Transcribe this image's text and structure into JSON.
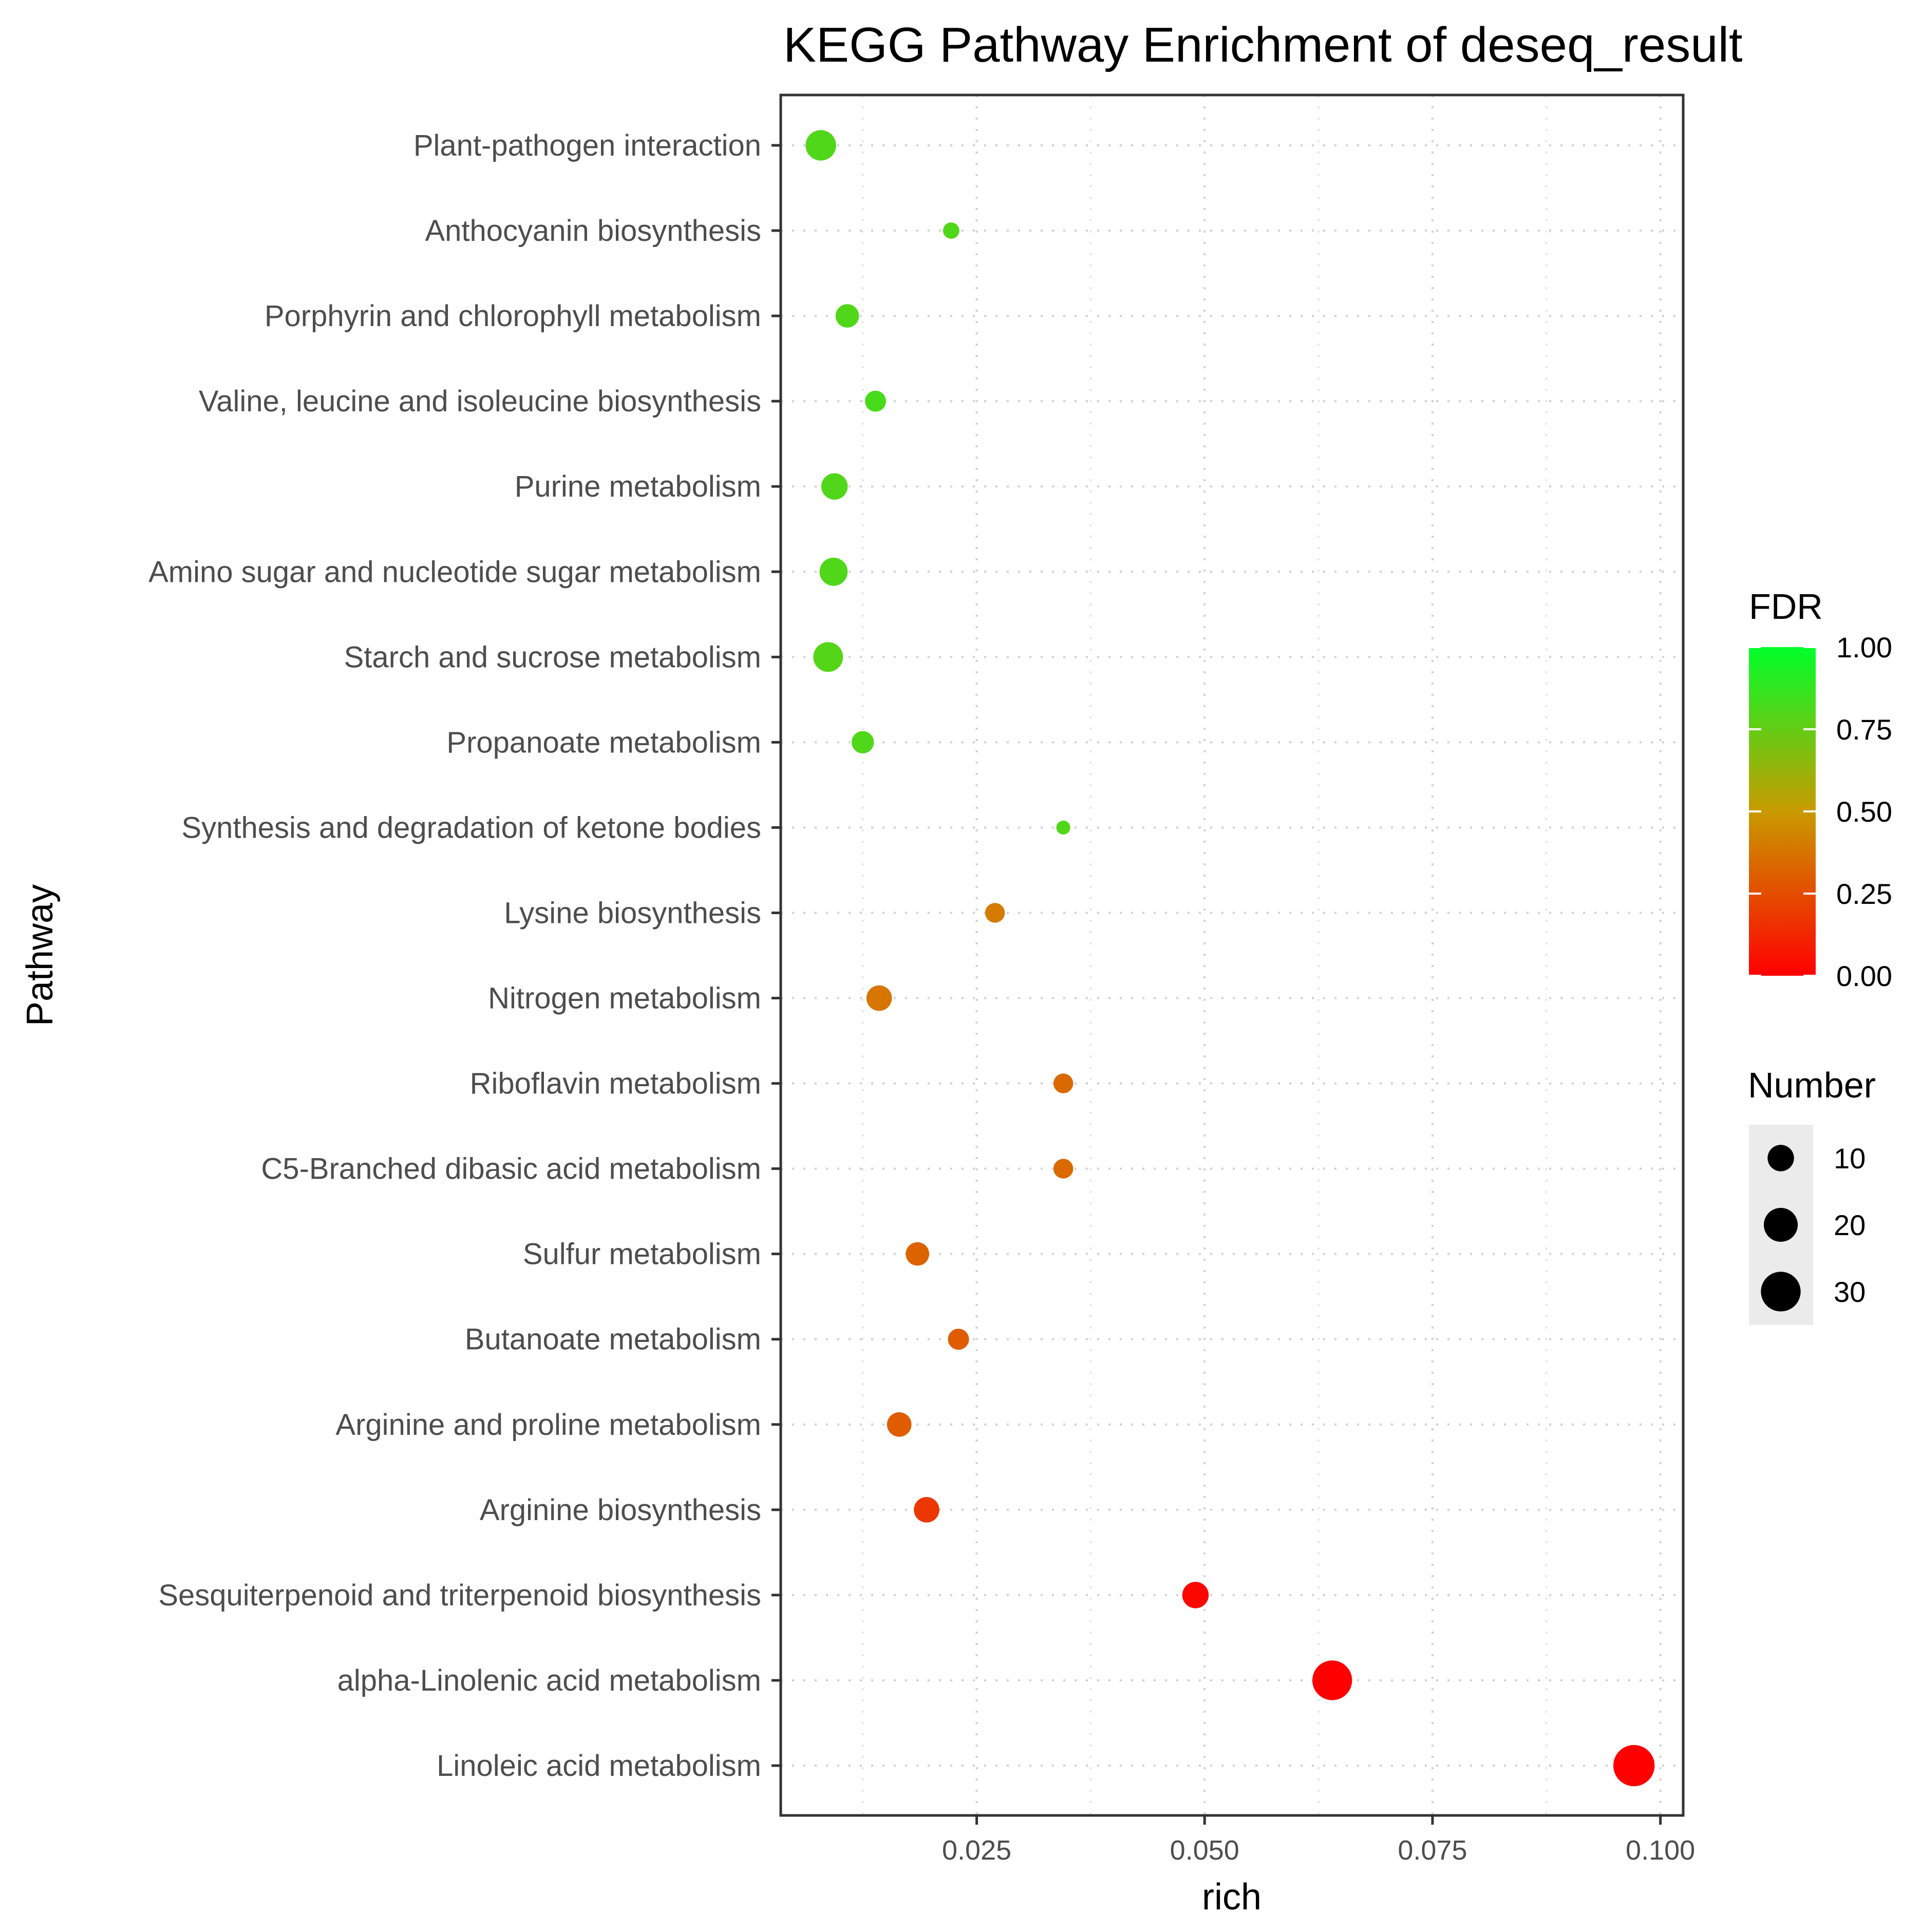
{
  "chart_data": {
    "type": "scatter",
    "title": "KEGG Pathway Enrichment of deseq_result",
    "xlabel": "rich",
    "ylabel": "Pathway",
    "xlim": [
      0.0035,
      0.1025
    ],
    "xticks": [
      0.025,
      0.05,
      0.075,
      0.1
    ],
    "xtick_labels": [
      "0.025",
      "0.050",
      "0.075",
      "0.100"
    ],
    "grid": true,
    "categories": [
      "Plant-pathogen interaction",
      "Anthocyanin biosynthesis",
      "Porphyrin and chlorophyll metabolism",
      "Valine, leucine and isoleucine biosynthesis",
      "Purine metabolism",
      "Amino sugar and nucleotide sugar metabolism",
      "Starch and sucrose metabolism",
      "Propanoate metabolism",
      "Synthesis and degradation of ketone bodies",
      "Lysine biosynthesis",
      "Nitrogen metabolism",
      "Riboflavin metabolism",
      "C5-Branched dibasic acid metabolism",
      "Sulfur metabolism",
      "Butanoate metabolism",
      "Arginine and proline metabolism",
      "Arginine biosynthesis",
      "Sesquiterpenoid and triterpenoid biosynthesis",
      "alpha-Linolenic acid metabolism",
      "Linoleic acid metabolism"
    ],
    "points": [
      {
        "pathway": "Plant-pathogen interaction",
        "rich": 0.0079,
        "number": 15,
        "fdr": 0.8
      },
      {
        "pathway": "Anthocyanin biosynthesis",
        "rich": 0.0222,
        "number": 2,
        "fdr": 0.8
      },
      {
        "pathway": "Porphyrin and chlorophyll metabolism",
        "rich": 0.0108,
        "number": 7,
        "fdr": 0.8
      },
      {
        "pathway": "Valine, leucine and isoleucine biosynthesis",
        "rich": 0.0139,
        "number": 5,
        "fdr": 0.82
      },
      {
        "pathway": "Purine metabolism",
        "rich": 0.0094,
        "number": 10,
        "fdr": 0.8
      },
      {
        "pathway": "Amino sugar and nucleotide sugar metabolism",
        "rich": 0.0093,
        "number": 12,
        "fdr": 0.8
      },
      {
        "pathway": "Starch and sucrose metabolism",
        "rich": 0.0087,
        "number": 14,
        "fdr": 0.79
      },
      {
        "pathway": "Propanoate metabolism",
        "rich": 0.0125,
        "number": 6,
        "fdr": 0.8
      },
      {
        "pathway": "Synthesis and degradation of ketone bodies",
        "rich": 0.0345,
        "number": 1,
        "fdr": 0.8
      },
      {
        "pathway": "Lysine biosynthesis",
        "rich": 0.027,
        "number": 4,
        "fdr": 0.4
      },
      {
        "pathway": "Nitrogen metabolism",
        "rich": 0.0143,
        "number": 9,
        "fdr": 0.38
      },
      {
        "pathway": "Riboflavin metabolism",
        "rich": 0.0345,
        "number": 4,
        "fdr": 0.34
      },
      {
        "pathway": "C5-Branched dibasic acid metabolism",
        "rich": 0.0345,
        "number": 4,
        "fdr": 0.34
      },
      {
        "pathway": "Sulfur metabolism",
        "rich": 0.0185,
        "number": 7,
        "fdr": 0.32
      },
      {
        "pathway": "Butanoate metabolism",
        "rich": 0.023,
        "number": 5,
        "fdr": 0.3
      },
      {
        "pathway": "Arginine and proline metabolism",
        "rich": 0.0165,
        "number": 8,
        "fdr": 0.3
      },
      {
        "pathway": "Arginine biosynthesis",
        "rich": 0.0195,
        "number": 9,
        "fdr": 0.18
      },
      {
        "pathway": "Sesquiterpenoid and triterpenoid biosynthesis",
        "rich": 0.049,
        "number": 10,
        "fdr": 0.02
      },
      {
        "pathway": "alpha-Linolenic acid metabolism",
        "rich": 0.064,
        "number": 30,
        "fdr": 0.0
      },
      {
        "pathway": "Linoleic acid metabolism",
        "rich": 0.0971,
        "number": 33,
        "fdr": 0.0
      }
    ],
    "legend_color": {
      "title": "FDR",
      "ticks": [
        1.0,
        0.75,
        0.5,
        0.25,
        0.0
      ],
      "tick_labels": [
        "1.00",
        "0.75",
        "0.50",
        "0.25",
        "0.00"
      ],
      "low_color": "#ff0000",
      "high_color": "#00ff00",
      "placement": "right"
    },
    "legend_size": {
      "title": "Number",
      "values": [
        10,
        20,
        30
      ],
      "labels": [
        "10",
        "20",
        "30"
      ],
      "placement": "right"
    }
  }
}
